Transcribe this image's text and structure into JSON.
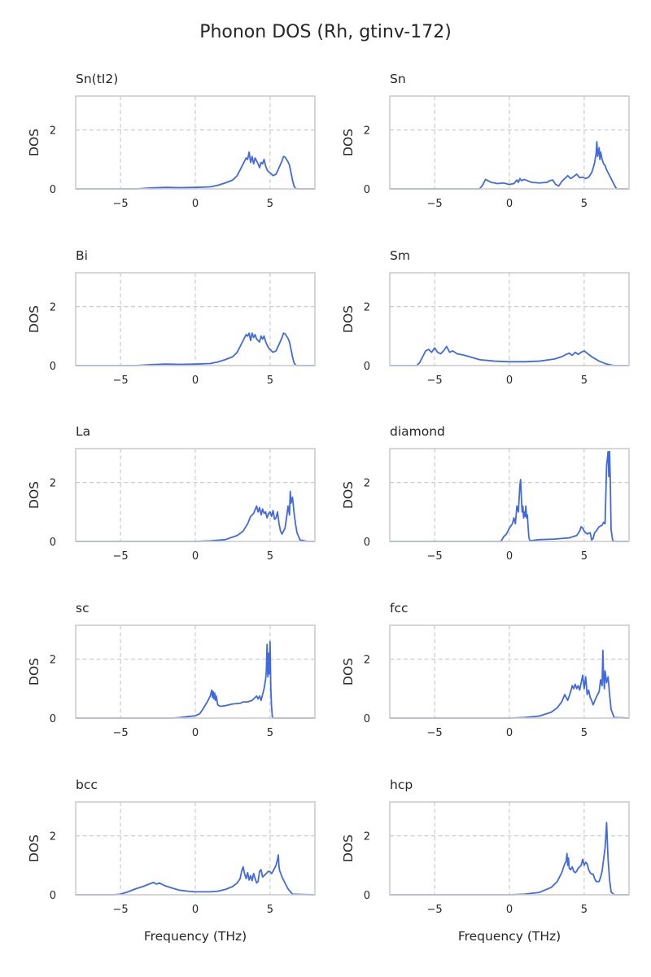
{
  "figure": {
    "title": "Phonon DOS (Rh, gtinv-172)"
  },
  "style": {
    "line_color": "#4169e1",
    "grid_color": "#cccccc",
    "frame_color": "#cccccc",
    "text_color": "#262626"
  },
  "chart_data": [
    {
      "type": "line",
      "title": "Sn(tI2)",
      "xlabel": "",
      "ylabel": "DOS",
      "xlim": [
        -8,
        8
      ],
      "ylim": [
        0,
        3.15
      ],
      "xticks": [
        -5,
        0,
        5
      ],
      "yticks": [
        0,
        2
      ],
      "grid": true,
      "x": [
        -8,
        -4,
        -3,
        -2,
        -1,
        0,
        1,
        1.5,
        2,
        2.5,
        2.8,
        3,
        3.2,
        3.4,
        3.5,
        3.6,
        3.7,
        3.8,
        3.9,
        4.0,
        4.1,
        4.2,
        4.3,
        4.4,
        4.5,
        4.6,
        4.7,
        4.8,
        4.9,
        5.0,
        5.2,
        5.4,
        5.6,
        5.8,
        5.9,
        6.0,
        6.1,
        6.2,
        6.3,
        6.4,
        6.5,
        6.6,
        6.7,
        6.8,
        7.5,
        8
      ],
      "y": [
        0,
        0,
        0.03,
        0.05,
        0.04,
        0.05,
        0.07,
        0.12,
        0.2,
        0.3,
        0.45,
        0.65,
        0.85,
        1.05,
        1.0,
        1.25,
        0.9,
        1.1,
        0.85,
        1.05,
        0.95,
        0.85,
        0.72,
        0.9,
        0.85,
        1.0,
        0.78,
        0.65,
        0.58,
        0.55,
        0.45,
        0.5,
        0.72,
        0.95,
        1.1,
        1.08,
        1.0,
        0.92,
        0.8,
        0.55,
        0.3,
        0.1,
        0.02,
        0,
        0,
        0
      ]
    },
    {
      "type": "line",
      "title": "Sn",
      "xlabel": "",
      "ylabel": "DOS",
      "xlim": [
        -8,
        8
      ],
      "ylim": [
        0,
        3.15
      ],
      "xticks": [
        -5,
        0,
        5
      ],
      "yticks": [
        0,
        2
      ],
      "grid": true,
      "x": [
        -8,
        -2,
        -1.8,
        -1.6,
        -1.2,
        -0.8,
        -0.4,
        0,
        0.3,
        0.5,
        0.6,
        0.7,
        0.8,
        1,
        1.5,
        2,
        2.5,
        2.7,
        2.9,
        3.1,
        3.3,
        3.5,
        3.7,
        3.9,
        4.1,
        4.3,
        4.5,
        4.7,
        4.9,
        5.1,
        5.3,
        5.5,
        5.6,
        5.7,
        5.8,
        5.85,
        5.9,
        6.0,
        6.05,
        6.1,
        6.2,
        6.3,
        6.4,
        6.5,
        6.6,
        6.7,
        6.8,
        6.9,
        7.0,
        7.1,
        7.2,
        8
      ],
      "y": [
        0,
        0,
        0.12,
        0.32,
        0.22,
        0.18,
        0.2,
        0.15,
        0.18,
        0.3,
        0.22,
        0.35,
        0.28,
        0.32,
        0.22,
        0.2,
        0.22,
        0.28,
        0.3,
        0.15,
        0.1,
        0.25,
        0.35,
        0.45,
        0.35,
        0.42,
        0.5,
        0.38,
        0.4,
        0.35,
        0.4,
        0.55,
        0.7,
        0.9,
        1.2,
        1.6,
        1.1,
        1.4,
        1.0,
        1.25,
        1.0,
        0.85,
        0.8,
        0.65,
        0.55,
        0.45,
        0.35,
        0.25,
        0.15,
        0.05,
        0,
        0
      ]
    },
    {
      "type": "line",
      "title": "Bi",
      "xlabel": "",
      "ylabel": "DOS",
      "xlim": [
        -8,
        8
      ],
      "ylim": [
        0,
        3.15
      ],
      "xticks": [
        -5,
        0,
        5
      ],
      "yticks": [
        0,
        2
      ],
      "grid": true,
      "x": [
        -8,
        -4,
        -3,
        -2,
        -1,
        0,
        1,
        1.5,
        2,
        2.5,
        2.8,
        3,
        3.2,
        3.4,
        3.5,
        3.6,
        3.7,
        3.8,
        3.9,
        4.0,
        4.1,
        4.2,
        4.3,
        4.4,
        4.5,
        4.6,
        4.7,
        4.8,
        4.9,
        5.0,
        5.2,
        5.4,
        5.6,
        5.8,
        5.9,
        6.0,
        6.1,
        6.2,
        6.3,
        6.4,
        6.5,
        6.6,
        6.7,
        6.8,
        7.5,
        8
      ],
      "y": [
        0,
        0,
        0.03,
        0.05,
        0.04,
        0.05,
        0.07,
        0.12,
        0.2,
        0.3,
        0.45,
        0.65,
        0.85,
        1.05,
        1.0,
        1.1,
        0.85,
        1.1,
        0.95,
        1.05,
        0.9,
        0.85,
        0.8,
        1.0,
        0.9,
        1.0,
        0.82,
        0.7,
        0.6,
        0.55,
        0.45,
        0.5,
        0.72,
        0.95,
        1.1,
        1.08,
        1.0,
        0.92,
        0.8,
        0.55,
        0.3,
        0.1,
        0.02,
        0,
        0,
        0
      ]
    },
    {
      "type": "line",
      "title": "Sm",
      "xlabel": "",
      "ylabel": "DOS",
      "xlim": [
        -8,
        8
      ],
      "ylim": [
        0,
        3.15
      ],
      "xticks": [
        -5,
        0,
        5
      ],
      "yticks": [
        0,
        2
      ],
      "grid": true,
      "x": [
        -8,
        -6.2,
        -6,
        -5.8,
        -5.6,
        -5.4,
        -5.2,
        -5,
        -4.8,
        -4.6,
        -4.4,
        -4.2,
        -4,
        -3.8,
        -3.5,
        -3,
        -2,
        -1,
        0,
        1,
        2,
        3,
        3.5,
        3.8,
        4,
        4.2,
        4.4,
        4.6,
        4.8,
        5,
        5.2,
        5.5,
        6,
        6.5,
        7,
        8
      ],
      "y": [
        0,
        0,
        0.1,
        0.3,
        0.5,
        0.55,
        0.45,
        0.6,
        0.45,
        0.4,
        0.5,
        0.65,
        0.45,
        0.5,
        0.4,
        0.35,
        0.2,
        0.15,
        0.13,
        0.13,
        0.15,
        0.22,
        0.3,
        0.38,
        0.42,
        0.35,
        0.45,
        0.38,
        0.45,
        0.5,
        0.42,
        0.3,
        0.15,
        0.05,
        0,
        0
      ]
    },
    {
      "type": "line",
      "title": "La",
      "xlabel": "",
      "ylabel": "DOS",
      "xlim": [
        -8,
        8
      ],
      "ylim": [
        0,
        3.15
      ],
      "xticks": [
        -5,
        0,
        5
      ],
      "yticks": [
        0,
        2
      ],
      "grid": true,
      "x": [
        -8,
        0,
        1,
        2,
        2.8,
        3.2,
        3.5,
        3.7,
        3.9,
        4.1,
        4.2,
        4.3,
        4.4,
        4.5,
        4.6,
        4.7,
        4.8,
        4.9,
        5.0,
        5.1,
        5.2,
        5.3,
        5.4,
        5.5,
        5.6,
        5.7,
        5.8,
        6.0,
        6.1,
        6.2,
        6.3,
        6.35,
        6.4,
        6.5,
        6.6,
        6.7,
        6.8,
        7.0,
        7.5,
        8
      ],
      "y": [
        0,
        0,
        0.02,
        0.06,
        0.2,
        0.35,
        0.6,
        0.85,
        0.95,
        1.2,
        1.0,
        1.15,
        0.9,
        1.1,
        0.95,
        1.0,
        0.8,
        0.95,
        1.0,
        0.85,
        1.05,
        0.75,
        0.8,
        1.0,
        0.6,
        0.35,
        0.25,
        0.45,
        0.8,
        1.2,
        0.9,
        1.7,
        1.3,
        1.5,
        1.0,
        0.6,
        0.3,
        0.05,
        0,
        0
      ]
    },
    {
      "type": "line",
      "title": "diamond",
      "xlabel": "",
      "ylabel": "DOS",
      "xlim": [
        -8,
        8
      ],
      "ylim": [
        0,
        3.15
      ],
      "xticks": [
        -5,
        0,
        5
      ],
      "yticks": [
        0,
        2
      ],
      "grid": true,
      "x": [
        -8,
        -0.6,
        -0.5,
        -0.4,
        -0.2,
        0,
        0.2,
        0.3,
        0.4,
        0.5,
        0.6,
        0.7,
        0.75,
        0.8,
        0.85,
        0.9,
        0.95,
        1.0,
        1.05,
        1.1,
        1.15,
        1.2,
        1.25,
        1.3,
        1.35,
        1.4,
        1.5,
        2,
        3,
        4,
        4.5,
        4.7,
        4.8,
        4.9,
        5.0,
        5.2,
        5.4,
        5.5,
        5.6,
        5.7,
        5.8,
        6.0,
        6.2,
        6.3,
        6.4,
        6.5,
        6.55,
        6.6,
        6.65,
        6.7,
        6.75,
        6.8,
        6.9,
        7,
        8
      ],
      "y": [
        0,
        0,
        0.05,
        0.15,
        0.25,
        0.45,
        0.6,
        0.8,
        0.6,
        1.2,
        1.0,
        1.9,
        2.1,
        1.5,
        1.0,
        1.2,
        0.8,
        1.0,
        0.85,
        1.2,
        0.8,
        0.9,
        0.5,
        0.15,
        0.05,
        0.02,
        0.03,
        0.06,
        0.08,
        0.12,
        0.2,
        0.35,
        0.5,
        0.45,
        0.35,
        0.25,
        0.3,
        0.05,
        0.1,
        0.3,
        0.35,
        0.5,
        0.55,
        0.65,
        0.6,
        2.6,
        2.8,
        3.05,
        2.2,
        3.05,
        2.0,
        0.4,
        0.05,
        0,
        0
      ]
    },
    {
      "type": "line",
      "title": "sc",
      "xlabel": "",
      "ylabel": "DOS",
      "xlim": [
        -8,
        8
      ],
      "ylim": [
        0,
        3.15
      ],
      "xticks": [
        -5,
        0,
        5
      ],
      "yticks": [
        0,
        2
      ],
      "grid": true,
      "x": [
        -8,
        -1.5,
        -1,
        -0.5,
        0,
        0.3,
        0.5,
        0.8,
        1.0,
        1.1,
        1.15,
        1.2,
        1.25,
        1.3,
        1.35,
        1.4,
        1.5,
        1.6,
        1.7,
        2,
        2.5,
        3,
        3.2,
        3.5,
        3.8,
        4,
        4.1,
        4.2,
        4.3,
        4.4,
        4.5,
        4.6,
        4.7,
        4.75,
        4.8,
        4.85,
        4.9,
        4.95,
        5.0,
        5.05,
        5.1,
        5.15,
        5.2,
        8
      ],
      "y": [
        0,
        0,
        0.02,
        0.05,
        0.08,
        0.15,
        0.3,
        0.55,
        0.75,
        0.95,
        0.7,
        0.9,
        0.65,
        0.85,
        0.6,
        0.75,
        0.45,
        0.42,
        0.4,
        0.42,
        0.48,
        0.5,
        0.55,
        0.55,
        0.6,
        0.7,
        0.75,
        0.65,
        0.75,
        0.6,
        0.8,
        1.0,
        1.3,
        1.6,
        2.5,
        1.4,
        2.2,
        1.5,
        2.6,
        1.0,
        0.4,
        0.05,
        0,
        0
      ]
    },
    {
      "type": "line",
      "title": "fcc",
      "xlabel": "",
      "ylabel": "DOS",
      "xlim": [
        -8,
        8
      ],
      "ylim": [
        0,
        3.15
      ],
      "xticks": [
        -5,
        0,
        5
      ],
      "yticks": [
        0,
        2
      ],
      "grid": true,
      "x": [
        -8,
        0,
        1,
        2,
        2.8,
        3.2,
        3.5,
        3.7,
        3.8,
        3.9,
        4.0,
        4.1,
        4.2,
        4.3,
        4.4,
        4.5,
        4.6,
        4.7,
        4.8,
        4.9,
        5.0,
        5.1,
        5.2,
        5.3,
        5.4,
        5.5,
        5.6,
        5.8,
        6.0,
        6.1,
        6.2,
        6.25,
        6.3,
        6.35,
        6.4,
        6.5,
        6.6,
        6.7,
        6.8,
        7.0,
        8
      ],
      "y": [
        0,
        0,
        0.02,
        0.07,
        0.2,
        0.35,
        0.55,
        0.8,
        0.7,
        0.6,
        0.75,
        0.9,
        1.1,
        1.0,
        1.15,
        1.0,
        1.1,
        0.95,
        1.2,
        1.45,
        1.0,
        1.4,
        0.8,
        0.95,
        0.7,
        0.6,
        0.45,
        0.7,
        0.9,
        1.3,
        1.1,
        2.3,
        1.4,
        1.0,
        1.6,
        1.2,
        1.4,
        0.8,
        0.3,
        0.02,
        0
      ]
    },
    {
      "type": "line",
      "title": "bcc",
      "xlabel": "Frequency (THz)",
      "ylabel": "DOS",
      "xlim": [
        -8,
        8
      ],
      "ylim": [
        0,
        3.15
      ],
      "xticks": [
        -5,
        0,
        5
      ],
      "yticks": [
        0,
        2
      ],
      "grid": true,
      "x": [
        -8,
        -5.5,
        -5,
        -4.5,
        -4,
        -3.5,
        -3,
        -2.8,
        -2.6,
        -2.4,
        -2,
        -1.5,
        -1,
        -0.5,
        0,
        0.5,
        1,
        1.5,
        2,
        2.5,
        2.8,
        3,
        3.1,
        3.2,
        3.3,
        3.4,
        3.5,
        3.6,
        3.7,
        3.8,
        3.9,
        4.0,
        4.1,
        4.2,
        4.3,
        4.4,
        4.5,
        4.6,
        4.7,
        4.8,
        4.9,
        5.0,
        5.1,
        5.2,
        5.3,
        5.4,
        5.5,
        5.55,
        5.6,
        5.65,
        5.7,
        5.8,
        6.0,
        6.2,
        6.5,
        8
      ],
      "y": [
        0,
        0,
        0.02,
        0.1,
        0.2,
        0.28,
        0.38,
        0.42,
        0.36,
        0.4,
        0.3,
        0.22,
        0.15,
        0.12,
        0.1,
        0.1,
        0.1,
        0.12,
        0.18,
        0.28,
        0.4,
        0.55,
        0.8,
        0.95,
        0.7,
        0.55,
        0.75,
        0.5,
        0.65,
        0.48,
        0.72,
        0.55,
        0.4,
        0.45,
        0.8,
        0.85,
        0.6,
        0.65,
        0.7,
        0.75,
        0.8,
        0.78,
        0.72,
        0.8,
        0.9,
        1.0,
        1.2,
        1.35,
        0.95,
        0.8,
        0.75,
        0.6,
        0.4,
        0.2,
        0.02,
        0
      ]
    },
    {
      "type": "line",
      "title": "hcp",
      "xlabel": "Frequency (THz)",
      "ylabel": "DOS",
      "xlim": [
        -8,
        8
      ],
      "ylim": [
        0,
        3.15
      ],
      "xticks": [
        -5,
        0,
        5
      ],
      "yticks": [
        0,
        2
      ],
      "grid": true,
      "x": [
        -8,
        0,
        1,
        2,
        2.8,
        3.2,
        3.5,
        3.7,
        3.8,
        3.85,
        3.9,
        3.95,
        4.0,
        4.1,
        4.2,
        4.3,
        4.4,
        4.5,
        4.6,
        4.7,
        4.8,
        4.9,
        5.0,
        5.1,
        5.2,
        5.3,
        5.4,
        5.5,
        5.6,
        5.7,
        5.8,
        6.0,
        6.1,
        6.2,
        6.3,
        6.4,
        6.45,
        6.5,
        6.55,
        6.6,
        6.7,
        6.8,
        7.0,
        8
      ],
      "y": [
        0,
        0,
        0.02,
        0.08,
        0.25,
        0.45,
        0.75,
        1.05,
        1.15,
        1.4,
        1.0,
        1.25,
        0.9,
        0.85,
        0.95,
        0.8,
        0.75,
        0.8,
        0.9,
        0.95,
        1.0,
        1.2,
        1.0,
        1.1,
        1.05,
        0.85,
        0.75,
        0.7,
        0.7,
        0.55,
        0.45,
        0.45,
        0.6,
        0.8,
        1.2,
        1.6,
        2.0,
        2.45,
        1.8,
        1.2,
        0.5,
        0.1,
        0,
        0
      ]
    }
  ]
}
